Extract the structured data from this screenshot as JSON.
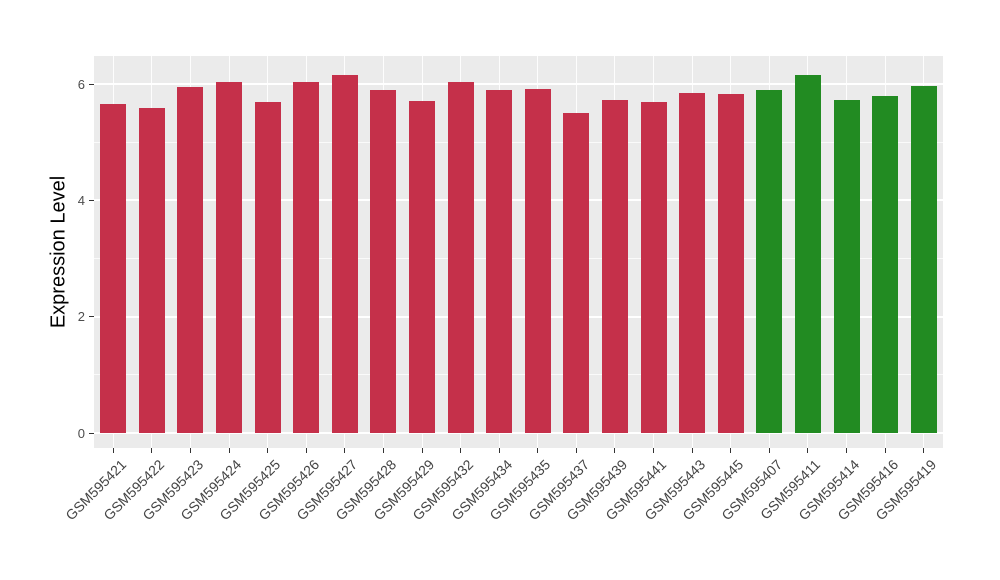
{
  "chart_data": {
    "type": "bar",
    "title": "",
    "ylabel": "Expression Level",
    "xlabel": "",
    "ylim": [
      0,
      6.48
    ],
    "yticks": [
      0,
      2,
      4,
      6
    ],
    "yminorticks": [
      1,
      3,
      5
    ],
    "grid": "white major and minor gridlines on gray panel",
    "legend": "none",
    "panel_bg": "#EBEBEB",
    "grid_color": "#FFFFFF",
    "axis_text_color": "#4D4D4D",
    "tick_mark_color": "#333333",
    "categories": [
      "GSM595421",
      "GSM595422",
      "GSM595423",
      "GSM595424",
      "GSM595425",
      "GSM595426",
      "GSM595427",
      "GSM595428",
      "GSM595429",
      "GSM595432",
      "GSM595434",
      "GSM595435",
      "GSM595437",
      "GSM595439",
      "GSM595441",
      "GSM595443",
      "GSM595445",
      "GSM595407",
      "GSM595411",
      "GSM595414",
      "GSM595416",
      "GSM595419"
    ],
    "values": [
      5.66,
      5.58,
      5.94,
      6.03,
      5.69,
      6.03,
      6.15,
      5.89,
      5.71,
      6.03,
      5.9,
      5.91,
      5.51,
      5.73,
      5.69,
      5.84,
      5.82,
      5.9,
      6.15,
      5.72,
      5.8,
      5.97
    ],
    "groups": [
      "group1",
      "group1",
      "group1",
      "group1",
      "group1",
      "group1",
      "group1",
      "group1",
      "group1",
      "group1",
      "group1",
      "group1",
      "group1",
      "group1",
      "group1",
      "group1",
      "group1",
      "group2",
      "group2",
      "group2",
      "group2",
      "group2"
    ],
    "group_colors": {
      "group1": "#C5304A",
      "group2": "#228B22"
    }
  }
}
